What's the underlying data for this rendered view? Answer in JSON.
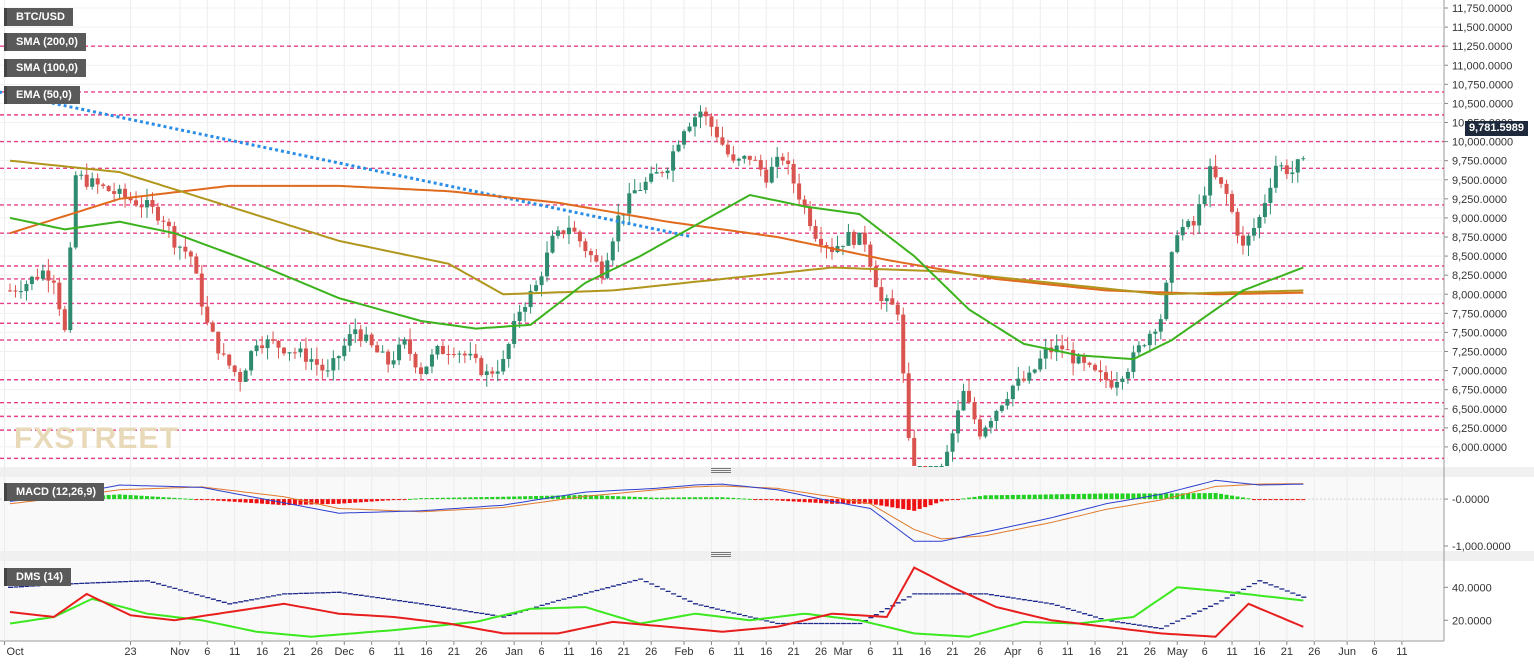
{
  "window": {
    "symbol": "BTC/USD"
  },
  "legend": [
    {
      "label": "BTC/USD",
      "color": "#333333"
    },
    {
      "label": "SMA (200,0)",
      "color": "#e07a2d"
    },
    {
      "label": "SMA (100,0)",
      "color": "#a88c1a"
    },
    {
      "label": "EMA (50,0)",
      "color": "#3cae1e"
    }
  ],
  "last_price_label": "9,781.5989",
  "watermark": "FXSTREET",
  "colors": {
    "up": "#2e8b6f",
    "down": "#d9534f",
    "pink": "#e8408a",
    "sma200": "#e06a1e",
    "sma100": "#b0961c",
    "ema50": "#3cb31e",
    "trend": "#2a8ee8",
    "macd": "#2d3fcf",
    "signal": "#e07a2d",
    "dms_plus": "#3ce81e",
    "dms_minus": "#e81e1e",
    "adx": "#1e2a8c"
  },
  "chart_data": [
    {
      "type": "candlestick",
      "title": "BTC/USD",
      "ylim": [
        5750,
        11750
      ],
      "yticks": [
        "11,750.0000",
        "11,500.0000",
        "11,250.0000",
        "11,000.0000",
        "10,750.0000",
        "10,500.0000",
        "10,250.0000",
        "10,000.0000",
        "9,750.0000",
        "9,500.0000",
        "9,250.0000",
        "9,000.0000",
        "8,750.0000",
        "8,500.0000",
        "8,250.0000",
        "8,000.0000",
        "7,750.0000",
        "7,500.0000",
        "7,250.0000",
        "7,000.0000",
        "6,750.0000",
        "6,500.0000",
        "6,250.0000",
        "6,000.0000"
      ],
      "ytick_values": [
        11750,
        11500,
        11250,
        11000,
        10750,
        10500,
        10250,
        10000,
        9750,
        9500,
        9250,
        9000,
        8750,
        8500,
        8250,
        8000,
        7750,
        7500,
        7250,
        7000,
        6750,
        6500,
        6250,
        6000
      ],
      "xticks": [
        "Oct",
        "23",
        "Nov",
        "6",
        "11",
        "16",
        "21",
        "26",
        "Dec",
        "6",
        "11",
        "16",
        "21",
        "26",
        "Jan",
        "6",
        "11",
        "16",
        "21",
        "26",
        "Feb",
        "6",
        "11",
        "16",
        "21",
        "26",
        "Mar",
        "6",
        "11",
        "16",
        "21",
        "26",
        "Apr",
        "6",
        "11",
        "16",
        "21",
        "26",
        "May",
        "6",
        "11",
        "16",
        "21",
        "26",
        "Jun",
        "6",
        "11"
      ],
      "xtick_days": [
        -1,
        22,
        31,
        36,
        41,
        46,
        51,
        56,
        61,
        66,
        71,
        76,
        81,
        86,
        92,
        97,
        102,
        107,
        112,
        117,
        123,
        128,
        133,
        138,
        143,
        148,
        152,
        157,
        162,
        167,
        172,
        177,
        183,
        188,
        193,
        198,
        203,
        208,
        213,
        218,
        223,
        228,
        233,
        238,
        244,
        249,
        254
      ],
      "horizontal_levels": [
        11250,
        10650,
        10350,
        10000,
        9650,
        9170,
        8800,
        8370,
        8200,
        7880,
        7620,
        7400,
        6880,
        6580,
        6400,
        6220,
        5850
      ],
      "close_anchors": [
        [
          0,
          8050
        ],
        [
          3,
          8150
        ],
        [
          6,
          8300
        ],
        [
          8,
          8220
        ],
        [
          10,
          7500
        ],
        [
          12,
          9550
        ],
        [
          15,
          9450
        ],
        [
          20,
          9300
        ],
        [
          25,
          9150
        ],
        [
          28,
          9000
        ],
        [
          30,
          8700
        ],
        [
          33,
          8500
        ],
        [
          36,
          7600
        ],
        [
          39,
          7150
        ],
        [
          42,
          6900
        ],
        [
          45,
          7400
        ],
        [
          48,
          7350
        ],
        [
          52,
          7250
        ],
        [
          55,
          7150
        ],
        [
          58,
          6950
        ],
        [
          60,
          7200
        ],
        [
          63,
          7550
        ],
        [
          66,
          7300
        ],
        [
          69,
          7100
        ],
        [
          72,
          7350
        ],
        [
          75,
          7000
        ],
        [
          78,
          7250
        ],
        [
          81,
          7300
        ],
        [
          84,
          7150
        ],
        [
          87,
          6950
        ],
        [
          90,
          7100
        ],
        [
          93,
          7800
        ],
        [
          96,
          8100
        ],
        [
          99,
          8700
        ],
        [
          102,
          8900
        ],
        [
          105,
          8600
        ],
        [
          108,
          8300
        ],
        [
          111,
          9000
        ],
        [
          114,
          9350
        ],
        [
          117,
          9500
        ],
        [
          120,
          9700
        ],
        [
          123,
          10200
        ],
        [
          126,
          10400
        ],
        [
          129,
          10100
        ],
        [
          132,
          9700
        ],
        [
          135,
          9800
        ],
        [
          138,
          9550
        ],
        [
          141,
          9800
        ],
        [
          144,
          9300
        ],
        [
          147,
          8800
        ],
        [
          150,
          8600
        ],
        [
          153,
          8750
        ],
        [
          156,
          8700
        ],
        [
          159,
          7900
        ],
        [
          162,
          7800
        ],
        [
          165,
          5150
        ],
        [
          168,
          5300
        ],
        [
          171,
          5900
        ],
        [
          174,
          6700
        ],
        [
          177,
          6200
        ],
        [
          180,
          6500
        ],
        [
          183,
          6800
        ],
        [
          186,
          6900
        ],
        [
          189,
          7250
        ],
        [
          192,
          7300
        ],
        [
          195,
          7100
        ],
        [
          198,
          6950
        ],
        [
          201,
          6850
        ],
        [
          204,
          7050
        ],
        [
          207,
          7400
        ],
        [
          210,
          7700
        ],
        [
          213,
          8850
        ],
        [
          216,
          8900
        ],
        [
          219,
          9600
        ],
        [
          222,
          9300
        ],
        [
          225,
          8600
        ],
        [
          228,
          9000
        ],
        [
          231,
          9700
        ],
        [
          234,
          9600
        ],
        [
          236,
          9781.6
        ]
      ],
      "trend_line": {
        "from": [
          -2,
          10650
        ],
        "to": [
          124,
          8760
        ]
      },
      "series": [
        {
          "name": "SMA (200,0)",
          "anchors": [
            [
              0,
              8800
            ],
            [
              20,
              9250
            ],
            [
              40,
              9420
            ],
            [
              60,
              9420
            ],
            [
              80,
              9350
            ],
            [
              100,
              9200
            ],
            [
              120,
              8950
            ],
            [
              140,
              8750
            ],
            [
              160,
              8450
            ],
            [
              180,
              8200
            ],
            [
              200,
              8050
            ],
            [
              220,
              8000
            ],
            [
              236,
              8020
            ]
          ]
        },
        {
          "name": "SMA (100,0)",
          "anchors": [
            [
              0,
              9750
            ],
            [
              20,
              9600
            ],
            [
              40,
              9150
            ],
            [
              60,
              8700
            ],
            [
              80,
              8400
            ],
            [
              90,
              8000
            ],
            [
              110,
              8050
            ],
            [
              130,
              8200
            ],
            [
              150,
              8350
            ],
            [
              170,
              8300
            ],
            [
              190,
              8150
            ],
            [
              210,
              8000
            ],
            [
              236,
              8050
            ]
          ]
        },
        {
          "name": "EMA (50,0)",
          "anchors": [
            [
              0,
              9000
            ],
            [
              10,
              8850
            ],
            [
              20,
              8950
            ],
            [
              30,
              8800
            ],
            [
              45,
              8400
            ],
            [
              60,
              7950
            ],
            [
              75,
              7650
            ],
            [
              85,
              7550
            ],
            [
              95,
              7600
            ],
            [
              105,
              8150
            ],
            [
              115,
              8500
            ],
            [
              125,
              8900
            ],
            [
              135,
              9300
            ],
            [
              145,
              9150
            ],
            [
              155,
              9050
            ],
            [
              165,
              8500
            ],
            [
              175,
              7800
            ],
            [
              185,
              7350
            ],
            [
              195,
              7200
            ],
            [
              205,
              7150
            ],
            [
              212,
              7400
            ],
            [
              225,
              8050
            ],
            [
              236,
              8350
            ]
          ]
        }
      ]
    },
    {
      "type": "line",
      "title": "MACD (12,26,9)",
      "yticks": [
        "-0.0000",
        "-1,000.0000"
      ],
      "ytick_values": [
        0,
        -1000
      ],
      "ylim": [
        -1150,
        450
      ],
      "series": [
        {
          "name": "MACD",
          "anchors": [
            [
              0,
              -50
            ],
            [
              10,
              80
            ],
            [
              20,
              300
            ],
            [
              35,
              250
            ],
            [
              50,
              -80
            ],
            [
              60,
              -300
            ],
            [
              75,
              -250
            ],
            [
              90,
              -130
            ],
            [
              105,
              150
            ],
            [
              118,
              230
            ],
            [
              125,
              300
            ],
            [
              130,
              320
            ],
            [
              140,
              200
            ],
            [
              150,
              -50
            ],
            [
              157,
              -200
            ],
            [
              165,
              -900
            ],
            [
              170,
              -900
            ],
            [
              178,
              -700
            ],
            [
              190,
              -400
            ],
            [
              200,
              -100
            ],
            [
              210,
              100
            ],
            [
              220,
              400
            ],
            [
              228,
              300
            ],
            [
              236,
              320
            ]
          ]
        },
        {
          "name": "Signal",
          "anchors": [
            [
              0,
              -100
            ],
            [
              10,
              40
            ],
            [
              20,
              200
            ],
            [
              35,
              260
            ],
            [
              50,
              50
            ],
            [
              60,
              -200
            ],
            [
              75,
              -270
            ],
            [
              90,
              -180
            ],
            [
              105,
              60
            ],
            [
              118,
              200
            ],
            [
              125,
              260
            ],
            [
              130,
              280
            ],
            [
              140,
              230
            ],
            [
              150,
              50
            ],
            [
              157,
              -100
            ],
            [
              165,
              -650
            ],
            [
              170,
              -850
            ],
            [
              178,
              -780
            ],
            [
              190,
              -500
            ],
            [
              200,
              -220
            ],
            [
              210,
              -20
            ],
            [
              220,
              270
            ],
            [
              228,
              320
            ],
            [
              236,
              330
            ]
          ]
        }
      ]
    },
    {
      "type": "line",
      "title": "DMS (14)",
      "yticks": [
        "40.0000",
        "20.0000"
      ],
      "ytick_values": [
        40,
        20
      ],
      "ylim": [
        8,
        56
      ],
      "series": [
        {
          "name": "+DI",
          "anchors": [
            [
              0,
              18
            ],
            [
              8,
              22
            ],
            [
              15,
              33
            ],
            [
              25,
              24
            ],
            [
              35,
              20
            ],
            [
              45,
              13
            ],
            [
              55,
              10
            ],
            [
              70,
              14
            ],
            [
              85,
              19
            ],
            [
              95,
              27
            ],
            [
              105,
              28
            ],
            [
              115,
              18
            ],
            [
              125,
              24
            ],
            [
              135,
              20
            ],
            [
              145,
              24
            ],
            [
              155,
              20
            ],
            [
              165,
              12
            ],
            [
              175,
              10
            ],
            [
              185,
              19
            ],
            [
              195,
              18
            ],
            [
              205,
              22
            ],
            [
              213,
              40
            ],
            [
              220,
              38
            ],
            [
              228,
              35
            ],
            [
              236,
              32
            ]
          ]
        },
        {
          "name": "-DI",
          "anchors": [
            [
              0,
              25
            ],
            [
              8,
              22
            ],
            [
              14,
              36
            ],
            [
              22,
              23
            ],
            [
              30,
              20
            ],
            [
              40,
              25
            ],
            [
              50,
              30
            ],
            [
              60,
              24
            ],
            [
              70,
              22
            ],
            [
              80,
              18
            ],
            [
              90,
              12
            ],
            [
              100,
              12
            ],
            [
              110,
              19
            ],
            [
              120,
              16
            ],
            [
              130,
              13
            ],
            [
              140,
              16
            ],
            [
              150,
              24
            ],
            [
              160,
              22
            ],
            [
              165,
              52
            ],
            [
              172,
              40
            ],
            [
              180,
              28
            ],
            [
              190,
              20
            ],
            [
              200,
              16
            ],
            [
              210,
              12
            ],
            [
              220,
              10
            ],
            [
              226,
              30
            ],
            [
              236,
              16
            ]
          ]
        },
        {
          "name": "ADX",
          "anchors": [
            [
              0,
              40
            ],
            [
              10,
              42
            ],
            [
              25,
              44
            ],
            [
              40,
              30
            ],
            [
              50,
              36
            ],
            [
              60,
              37
            ],
            [
              75,
              30
            ],
            [
              90,
              22
            ],
            [
              100,
              32
            ],
            [
              115,
              45
            ],
            [
              125,
              30
            ],
            [
              140,
              18
            ],
            [
              155,
              18
            ],
            [
              165,
              36
            ],
            [
              178,
              36
            ],
            [
              190,
              30
            ],
            [
              200,
              20
            ],
            [
              210,
              15
            ],
            [
              220,
              30
            ],
            [
              228,
              44
            ],
            [
              236,
              34
            ]
          ]
        }
      ],
      "histogram_zero": true
    }
  ]
}
